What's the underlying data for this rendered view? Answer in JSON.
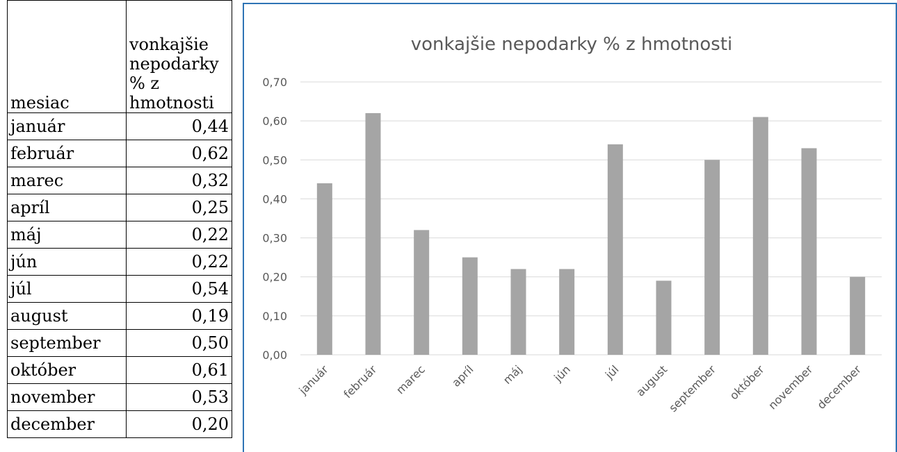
{
  "table": {
    "header": [
      "mesiac",
      "vonkajšie nepodarky % z hmotnosti"
    ],
    "rows": [
      [
        "január",
        "0,44"
      ],
      [
        "február",
        "0,62"
      ],
      [
        "marec",
        "0,32"
      ],
      [
        "apríl",
        "0,25"
      ],
      [
        "máj",
        "0,22"
      ],
      [
        "jún",
        "0,22"
      ],
      [
        "júl",
        "0,54"
      ],
      [
        "august",
        "0,19"
      ],
      [
        "september",
        "0,50"
      ],
      [
        "október",
        "0,61"
      ],
      [
        "november",
        "0,53"
      ],
      [
        "december",
        "0,20"
      ]
    ]
  },
  "chart_data": {
    "type": "bar",
    "title": "vonkajšie nepodarky % z hmotnosti",
    "categories": [
      "január",
      "február",
      "marec",
      "apríl",
      "máj",
      "jún",
      "júl",
      "august",
      "september",
      "október",
      "november",
      "december"
    ],
    "values": [
      0.44,
      0.62,
      0.32,
      0.25,
      0.22,
      0.22,
      0.54,
      0.19,
      0.5,
      0.61,
      0.53,
      0.2
    ],
    "color": "#a5a5a5",
    "ylim": [
      0,
      0.7
    ],
    "yticks": [
      {
        "value": 0,
        "label": "0,00"
      },
      {
        "value": 0.1,
        "label": "0,10"
      },
      {
        "value": 0.2,
        "label": "0,20"
      },
      {
        "value": 0.3,
        "label": "0,30"
      },
      {
        "value": 0.4,
        "label": "0,40"
      },
      {
        "value": 0.5,
        "label": "0,50"
      },
      {
        "value": 0.6,
        "label": "0,60"
      },
      {
        "value": 0.7,
        "label": "0,70"
      }
    ],
    "grid": true
  }
}
